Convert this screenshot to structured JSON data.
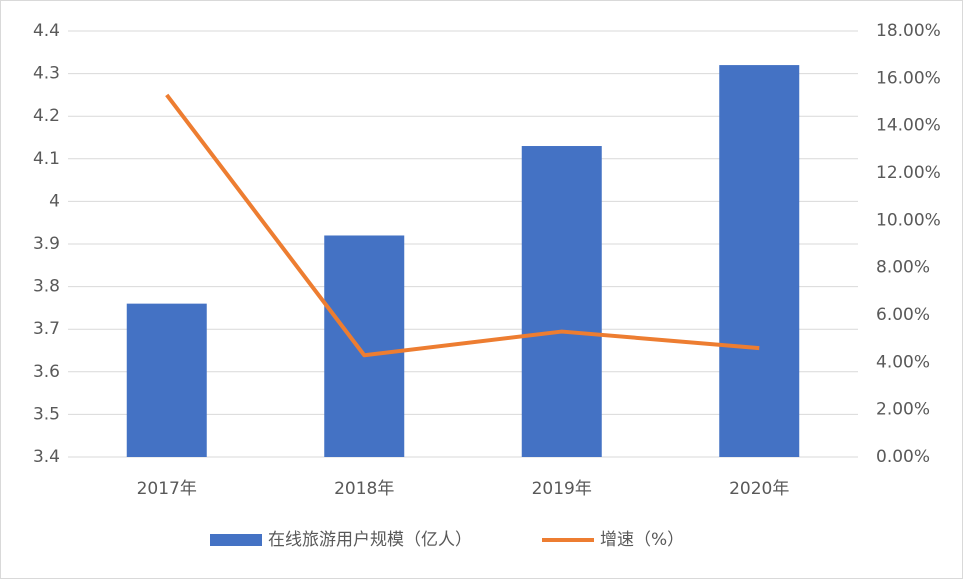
{
  "chart_data": {
    "type": "combo",
    "categories": [
      "2017年",
      "2018年",
      "2019年",
      "2020年"
    ],
    "series": [
      {
        "name": "在线旅游用户规模（亿人）",
        "type": "bar",
        "color": "#4472c4",
        "values": [
          3.76,
          3.92,
          4.13,
          4.32
        ]
      },
      {
        "name": "增速（%）",
        "type": "line",
        "axis": "y2",
        "color": "#ed7d31",
        "values": [
          15.3,
          4.3,
          5.3,
          4.6
        ]
      }
    ],
    "ylim": [
      3.4,
      4.4
    ],
    "yticks": [
      3.4,
      3.5,
      3.6,
      3.7,
      3.8,
      3.9,
      4,
      4.1,
      4.2,
      4.3,
      4.4
    ],
    "y2lim": [
      0,
      18
    ],
    "y2ticks": [
      {
        "value": 0,
        "label": "0.00%"
      },
      {
        "value": 2,
        "label": "2.00%"
      },
      {
        "value": 4,
        "label": "4.00%"
      },
      {
        "value": 6,
        "label": "6.00%"
      },
      {
        "value": 8,
        "label": "8.00%"
      },
      {
        "value": 10,
        "label": "10.00%"
      },
      {
        "value": 12,
        "label": "12.00%"
      },
      {
        "value": 14,
        "label": "14.00%"
      },
      {
        "value": 16,
        "label": "16.00%"
      },
      {
        "value": 18,
        "label": "18.00%"
      }
    ],
    "grid": true,
    "legend": "bottom"
  }
}
